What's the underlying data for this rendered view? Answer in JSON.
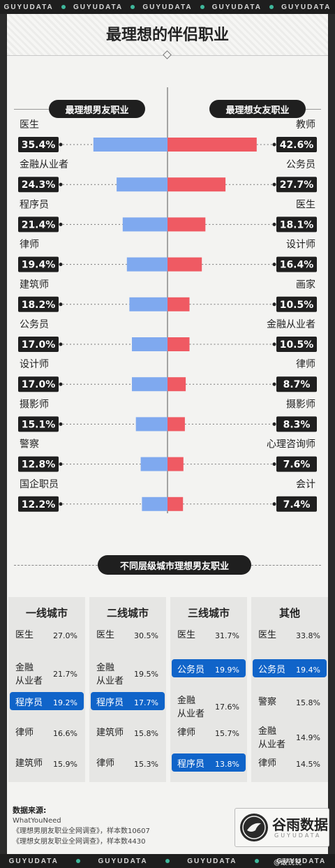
{
  "strip": {
    "word": "GUYUDATA"
  },
  "title": "最理想的伴侣职业",
  "headers": {
    "left": "最理想男友职业",
    "right": "最理想女友职业"
  },
  "colors": {
    "male_bar": "#7fa9ef",
    "female_bar": "#ef5a63",
    "highlight": "#1064c9",
    "dark": "#1f1f1f"
  },
  "chart_data": {
    "type": "bar",
    "title": "最理想的伴侣职业",
    "series": [
      {
        "name": "最理想男友职业",
        "categories": [
          "医生",
          "金融从业者",
          "程序员",
          "律师",
          "建筑师",
          "公务员",
          "设计师",
          "摄影师",
          "警察",
          "国企职员"
        ],
        "values": [
          35.4,
          24.3,
          21.4,
          19.4,
          18.2,
          17.0,
          17.0,
          15.1,
          12.8,
          12.2
        ],
        "labels": [
          "35.4%",
          "24.3%",
          "21.4%",
          "19.4%",
          "18.2%",
          "17.0%",
          "17.0%",
          "15.1%",
          "12.8%",
          "12.2%"
        ]
      },
      {
        "name": "最理想女友职业",
        "categories": [
          "教师",
          "公务员",
          "医生",
          "设计师",
          "画家",
          "金融从业者",
          "律师",
          "摄影师",
          "心理咨询师",
          "会计"
        ],
        "values": [
          42.6,
          27.7,
          18.1,
          16.4,
          10.5,
          10.5,
          8.7,
          8.3,
          7.6,
          7.4
        ],
        "labels": [
          "42.6%",
          "27.7%",
          "18.1%",
          "16.4%",
          "10.5%",
          "10.5%",
          "8.7%",
          "8.3%",
          "7.6%",
          "7.4%"
        ]
      }
    ],
    "unit": "%"
  },
  "section2": {
    "title": "不同层级城市理想男友职业",
    "columns": [
      {
        "head": "一线城市",
        "rows": [
          {
            "name": "医生",
            "value": "27.0%",
            "hl": false
          },
          {
            "name": "金融\n从业者",
            "value": "21.7%",
            "hl": false
          },
          {
            "name": "程序员",
            "value": "19.2%",
            "hl": true
          },
          {
            "name": "律师",
            "value": "16.6%",
            "hl": false
          },
          {
            "name": "建筑师",
            "value": "15.9%",
            "hl": false
          }
        ]
      },
      {
        "head": "二线城市",
        "rows": [
          {
            "name": "医生",
            "value": "30.5%",
            "hl": false
          },
          {
            "name": "金融\n从业者",
            "value": "19.5%",
            "hl": false
          },
          {
            "name": "程序员",
            "value": "17.7%",
            "hl": true
          },
          {
            "name": "建筑师",
            "value": "15.8%",
            "hl": false
          },
          {
            "name": "律师",
            "value": "15.3%",
            "hl": false
          }
        ]
      },
      {
        "head": "三线城市",
        "rows": [
          {
            "name": "医生",
            "value": "31.7%",
            "hl": false
          },
          {
            "name": "公务员",
            "value": "19.9%",
            "hl": true
          },
          {
            "name": "金融\n从业者",
            "value": "17.6%",
            "hl": false
          },
          {
            "name": "律师",
            "value": "15.7%",
            "hl": false
          },
          {
            "name": "程序员",
            "value": "13.8%",
            "hl": true
          }
        ]
      },
      {
        "head": "其他",
        "rows": [
          {
            "name": "医生",
            "value": "33.8%",
            "hl": false
          },
          {
            "name": "公务员",
            "value": "19.4%",
            "hl": true
          },
          {
            "name": "警察",
            "value": "15.8%",
            "hl": false
          },
          {
            "name": "金融\n从业者",
            "value": "14.9%",
            "hl": false
          },
          {
            "name": "律师",
            "value": "14.5%",
            "hl": false
          }
        ]
      }
    ]
  },
  "source": {
    "heading": "数据来源:",
    "lines": [
      "WhatYouNeed",
      "《理想男朋友职业全网调查》，样本数10607",
      "《理想女朋友职业全网调查》，样本数4430"
    ]
  },
  "logo": {
    "text": "谷雨数据",
    "sub": "GUYUDATA"
  },
  "watermark": "@最锐锐"
}
